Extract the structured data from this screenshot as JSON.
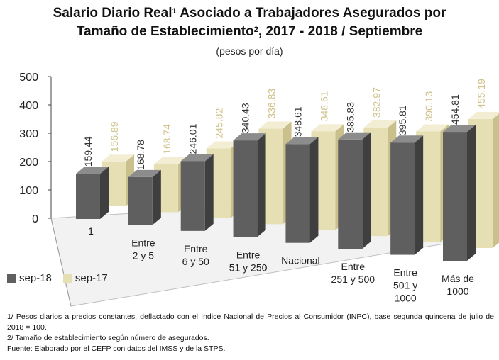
{
  "title": {
    "line1_a": "Salario Diario Real",
    "line1_sup": "1",
    "line1_b": " Asociado a Trabajadores Asegurados por",
    "line2_a": "Tamaño de Establecimiento",
    "line2_sup": "2",
    "line2_b": ", 2017 - 2018 / Septiembre"
  },
  "subtitle": "(pesos por día)",
  "colors": {
    "sep18_front": "#5f5f5f",
    "sep18_side": "#3f3f3f",
    "sep18_top": "#8c8c8c",
    "sep17_front": "#e6dfb4",
    "sep17_side": "#c9c08d",
    "sep17_top": "#f3eed3",
    "label_sep18": "#333333",
    "label_sep17": "#cfc28a"
  },
  "chart_data": {
    "type": "bar",
    "categories": [
      "1",
      "Entre\n2 y 5",
      "Entre\n6 y 50",
      "Entre\n51 y 250",
      "Nacional",
      "Entre\n251 y 500",
      "Entre\n501 y\n1000",
      "Más de\n1000"
    ],
    "series": [
      {
        "name": "sep-18",
        "values": [
          159.44,
          168.78,
          246.01,
          340.43,
          348.61,
          385.83,
          395.81,
          454.81
        ]
      },
      {
        "name": "sep-17",
        "values": [
          156.89,
          168.74,
          245.82,
          336.83,
          348.61,
          382.97,
          390.13,
          455.19
        ]
      }
    ],
    "labels": {
      "sep-18": [
        "159.44",
        "168.78",
        "246.01",
        "340.43",
        "348.61",
        "385.83",
        "395.81",
        "454.81"
      ],
      "sep-17": [
        "156.89",
        "168.74",
        "245.82",
        "336.83",
        "348.61",
        "382.97",
        "390.13",
        "455.19"
      ]
    },
    "yticks": [
      "0",
      "100",
      "200",
      "300",
      "400",
      "500"
    ],
    "ylim": [
      0,
      500
    ],
    "grid": false,
    "legend_position": "bottom-left",
    "style": "3d-clustered-column"
  },
  "legend": {
    "sep18": "sep-18",
    "sep17": "sep-17"
  },
  "notes": [
    "1/ Pesos diarios a precios constantes, deflactado con el Índice Nacional de Precios al Consumidor (INPC), base segunda quincena de julio de 2018 = 100.",
    "2/ Tamaño de establecimiento según número de asegurados.",
    "Fuente: Elaborado por el CEFP con datos del IMSS y de la STPS."
  ]
}
